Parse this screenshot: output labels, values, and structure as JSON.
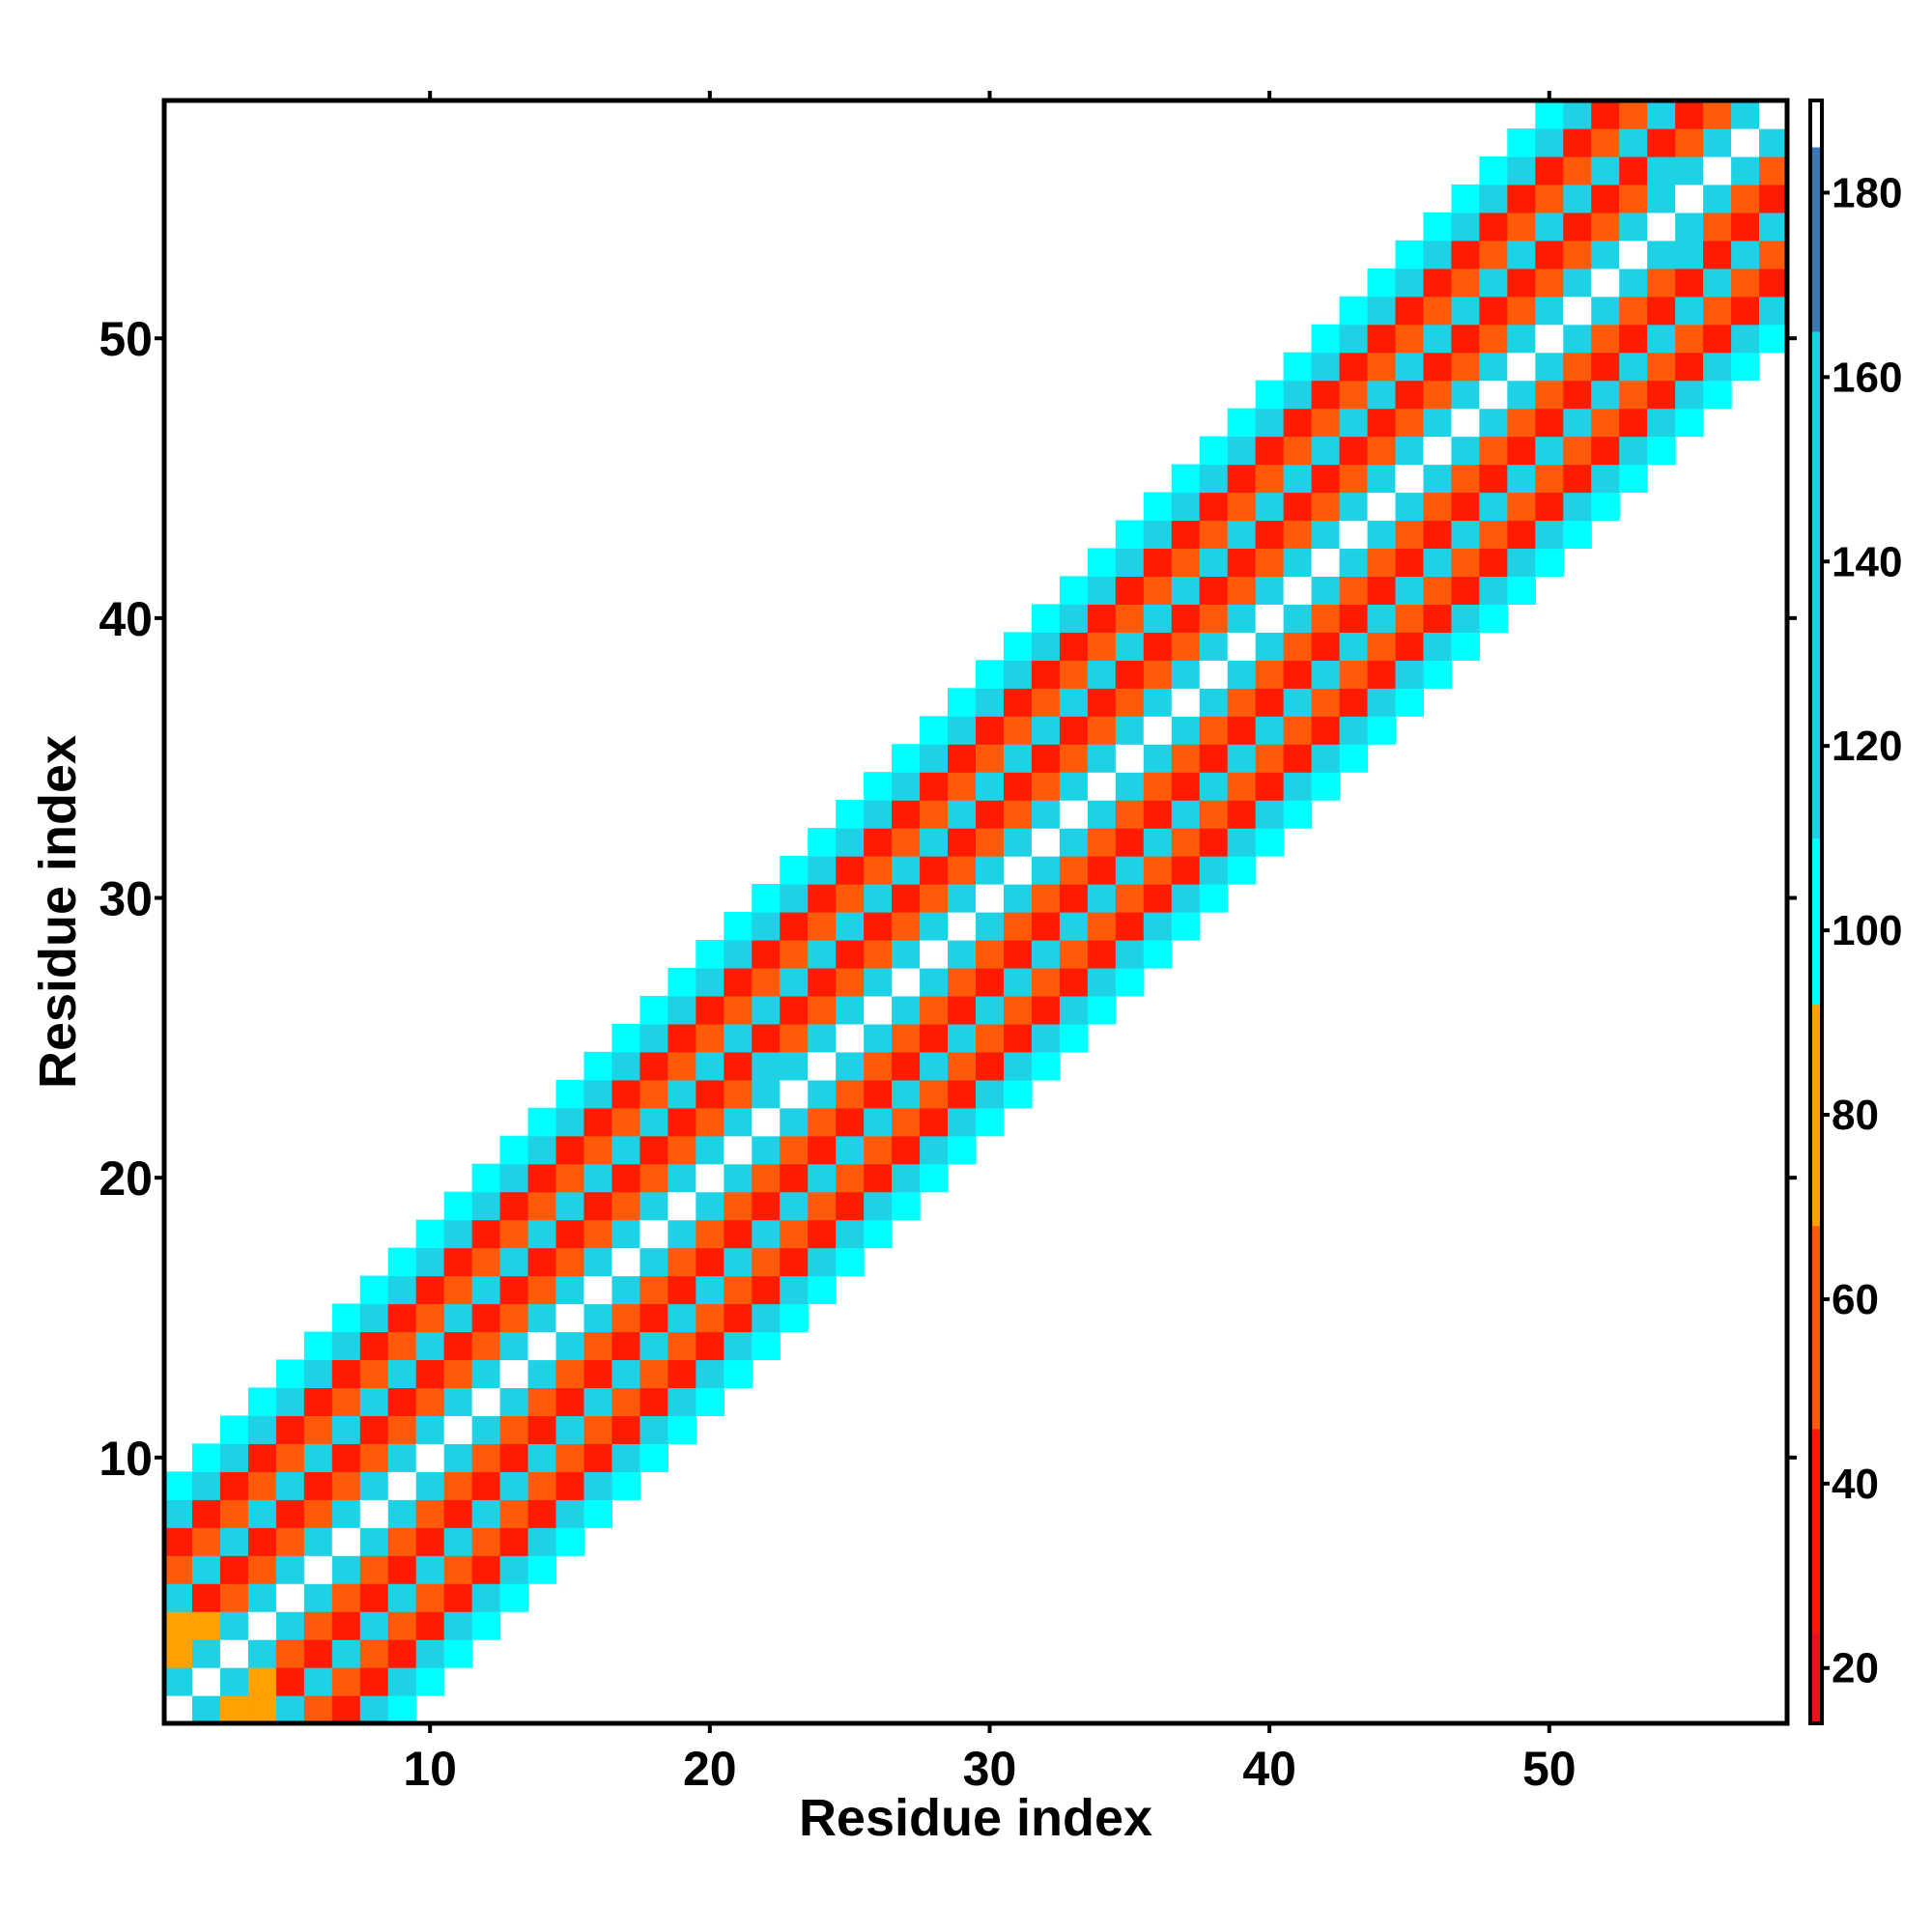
{
  "chart_data": {
    "type": "heatmap",
    "title": "",
    "xlabel": "Residue index",
    "ylabel": "Residue index",
    "xlim": [
      0.5,
      58.5
    ],
    "ylim": [
      0.5,
      58.5
    ],
    "x_ticks": [
      "10",
      "20",
      "30",
      "40",
      "50"
    ],
    "y_ticks": [
      "10",
      "20",
      "30",
      "40",
      "50"
    ],
    "grid": false,
    "colorbar": {
      "placement": "right",
      "range": [
        14,
        190
      ],
      "ticks": [
        "20",
        "40",
        "60",
        "80",
        "100",
        "120",
        "140",
        "160",
        "180"
      ],
      "colors": {
        "dark_red": "#e8141c",
        "red": "#ff1a00",
        "orange_red": "#ff5a0a",
        "orange": "#ffa100",
        "light_blue": "#1ed2e6",
        "cyan": "#00ffff",
        "steel_blue": "#3c78b4",
        "white": "#ffffff"
      }
    },
    "n_residues": 58,
    "band_halfwidth": 8,
    "diagonal_value": 190,
    "distance_values": {
      "1": 125,
      "2": 55,
      "3": 30,
      "4": 125,
      "5": 55,
      "6": 30,
      "7": 115,
      "8": 98
    },
    "cell_overrides": [
      {
        "i": 1,
        "j": 3,
        "value": 80
      },
      {
        "i": 1,
        "j": 4,
        "value": 80
      },
      {
        "i": 2,
        "j": 4,
        "value": 80
      },
      {
        "i": 3,
        "j": 1,
        "value": 80
      },
      {
        "i": 4,
        "j": 1,
        "value": 80
      },
      {
        "i": 4,
        "j": 2,
        "value": 80
      },
      {
        "i": 3,
        "j": 5,
        "value": 60
      },
      {
        "i": 5,
        "j": 3,
        "value": 60
      },
      {
        "i": 22,
        "j": 24,
        "value": 125
      },
      {
        "i": 23,
        "j": 22,
        "value": 125
      },
      {
        "i": 54,
        "j": 56,
        "value": 125
      },
      {
        "i": 55,
        "j": 53,
        "value": 125
      }
    ]
  }
}
